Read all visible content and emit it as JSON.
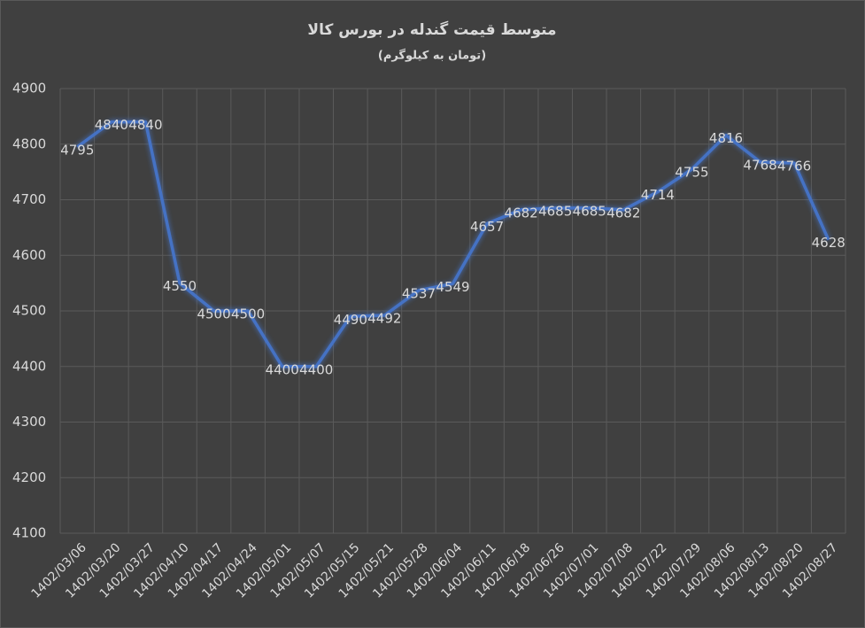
{
  "chart_data": {
    "type": "line",
    "title": "متوسط قیمت گندله در بورس کالا",
    "subtitle": "(تومان به کیلوگرم)",
    "categories": [
      "1402/03/06",
      "1402/03/20",
      "1402/03/27",
      "1402/04/10",
      "1402/04/17",
      "1402/04/24",
      "1402/05/01",
      "1402/05/07",
      "1402/05/15",
      "1402/05/21",
      "1402/05/28",
      "1402/06/04",
      "1402/06/11",
      "1402/06/18",
      "1402/06/26",
      "1402/07/01",
      "1402/07/08",
      "1402/07/22",
      "1402/07/29",
      "1402/08/06",
      "1402/08/13",
      "1402/08/20",
      "1402/08/27"
    ],
    "values": [
      4795,
      4840,
      4840,
      4550,
      4500,
      4500,
      4400,
      4400,
      4490,
      4492,
      4537,
      4549,
      4657,
      4682,
      4685,
      4685,
      4682,
      4714,
      4755,
      4816,
      4768,
      4766,
      4628
    ],
    "color": "#4472c4",
    "ylim": [
      4100,
      4900
    ],
    "yticks": [
      4100,
      4200,
      4300,
      4400,
      4500,
      4600,
      4700,
      4800,
      4900
    ],
    "grid": true
  }
}
